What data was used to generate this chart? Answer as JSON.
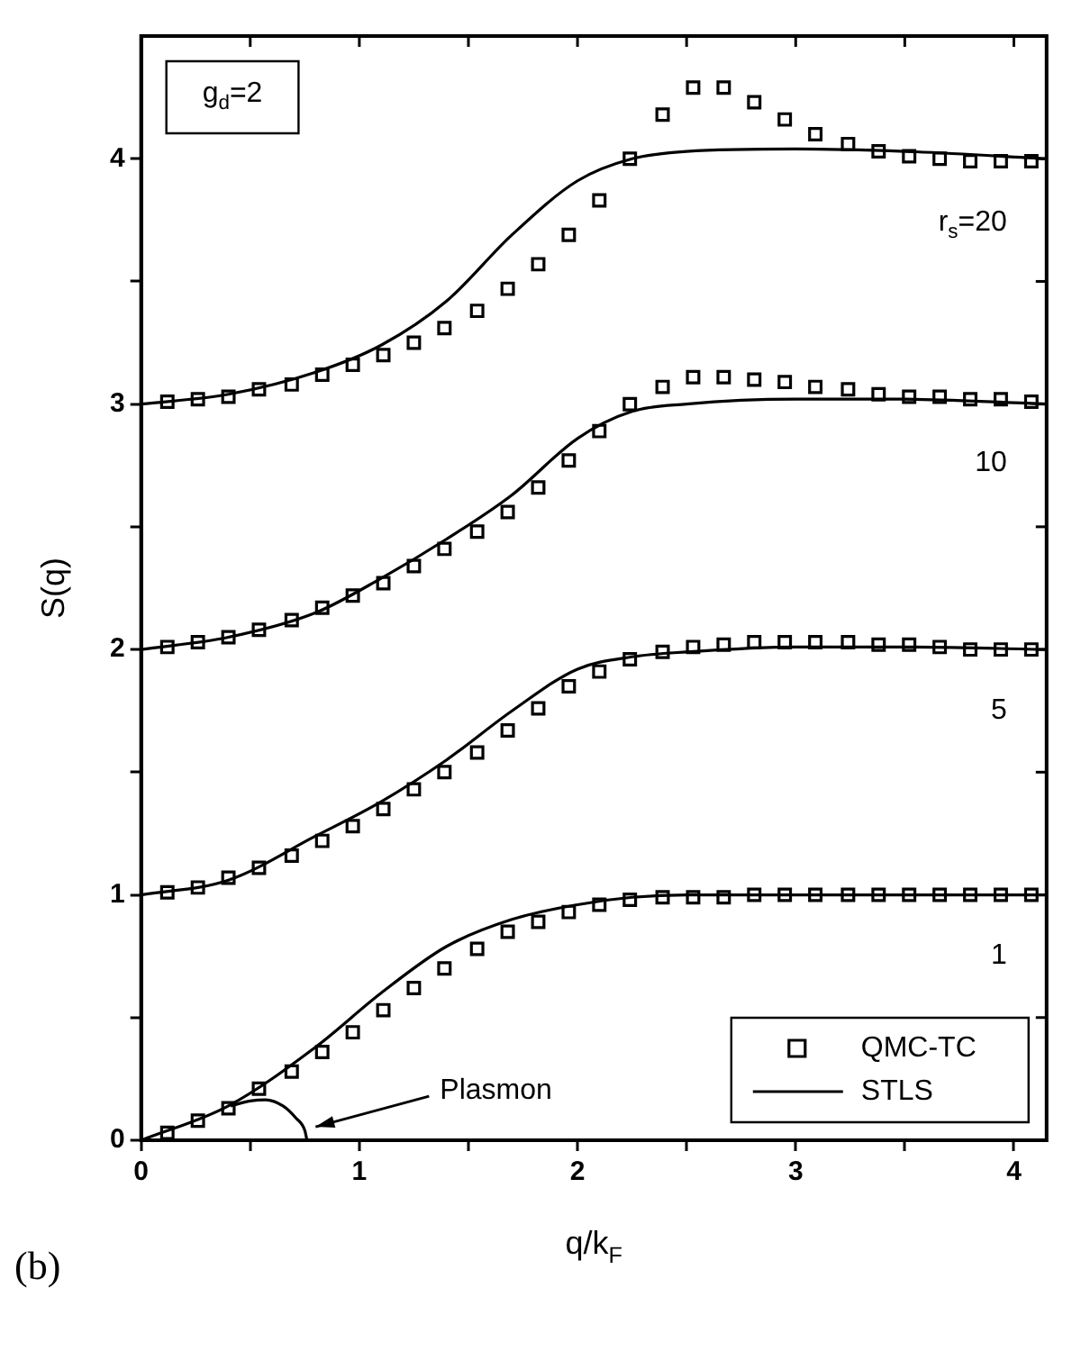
{
  "chart_data": {
    "type": "scatter",
    "xlabel": "q/k$_{F}$",
    "ylabel": "S(q)",
    "x": [
      0.12,
      0.26,
      0.4,
      0.54,
      0.69,
      0.83,
      0.97,
      1.11,
      1.25,
      1.39,
      1.54,
      1.68,
      1.82,
      1.96,
      2.1,
      2.24,
      2.39,
      2.53,
      2.67,
      2.81,
      2.95,
      3.09,
      3.24,
      3.38,
      3.52,
      3.66,
      3.8,
      3.94,
      4.08
    ],
    "series": [
      {
        "name": "QMC-TC",
        "marker": "square",
        "color": "#000000",
        "values": [
          0.03,
          0.08,
          0.13,
          0.21,
          0.28,
          0.36,
          0.44,
          0.53,
          0.62,
          0.7,
          0.78,
          0.85,
          0.89,
          0.93,
          0.96,
          0.98,
          0.99,
          0.99,
          0.99,
          1.0,
          1.0,
          1.0,
          1.0,
          1.0,
          1.0,
          1.0,
          1.0,
          1.0,
          1.0
        ]
      },
      {
        "marker": "square",
        "color": "#000000",
        "values": [
          1.01,
          1.03,
          1.07,
          1.11,
          1.16,
          1.22,
          1.28,
          1.35,
          1.43,
          1.5,
          1.58,
          1.67,
          1.76,
          1.85,
          1.91,
          1.96,
          1.99,
          2.01,
          2.02,
          2.03,
          2.03,
          2.03,
          2.03,
          2.02,
          2.02,
          2.01,
          2.0,
          2.0,
          2.0
        ]
      },
      {
        "marker": "square",
        "color": "#000000",
        "values": [
          2.01,
          2.03,
          2.05,
          2.08,
          2.12,
          2.17,
          2.22,
          2.27,
          2.34,
          2.41,
          2.48,
          2.56,
          2.66,
          2.77,
          2.89,
          3.0,
          3.07,
          3.11,
          3.11,
          3.1,
          3.09,
          3.07,
          3.06,
          3.04,
          3.03,
          3.03,
          3.02,
          3.02,
          3.01
        ]
      },
      {
        "marker": "square",
        "color": "#000000",
        "values": [
          3.01,
          3.02,
          3.03,
          3.06,
          3.08,
          3.12,
          3.16,
          3.2,
          3.25,
          3.31,
          3.38,
          3.47,
          3.57,
          3.69,
          3.83,
          4.0,
          4.18,
          4.29,
          4.29,
          4.23,
          4.16,
          4.1,
          4.06,
          4.03,
          4.01,
          4.0,
          3.99,
          3.99,
          3.99
        ]
      },
      {
        "name": "STLS",
        "type": "line",
        "line_style": "solid",
        "color": "#000000",
        "x": [
          0,
          0.4,
          0.8,
          1.1,
          1.4,
          1.7,
          2.0,
          2.25,
          2.5,
          3.0,
          3.5,
          4.15
        ],
        "values": [
          0,
          0.14,
          0.38,
          0.6,
          0.79,
          0.9,
          0.96,
          0.99,
          1.0,
          1.0,
          1.0,
          1.0
        ]
      },
      {
        "type": "line",
        "line_style": "solid",
        "color": "#000000",
        "x": [
          0,
          0.4,
          0.8,
          1.1,
          1.4,
          1.7,
          2.0,
          2.25,
          2.5,
          3.0,
          3.5,
          4.15
        ],
        "values": [
          1.0,
          1.06,
          1.24,
          1.38,
          1.55,
          1.75,
          1.92,
          1.97,
          1.99,
          2.01,
          2.01,
          2.0
        ]
      },
      {
        "type": "line",
        "line_style": "solid",
        "color": "#000000",
        "x": [
          0,
          0.4,
          0.8,
          1.1,
          1.4,
          1.7,
          2.0,
          2.25,
          2.5,
          3.0,
          3.5,
          4.15
        ],
        "values": [
          2.0,
          2.05,
          2.15,
          2.29,
          2.45,
          2.63,
          2.86,
          2.97,
          3.0,
          3.02,
          3.02,
          3.0
        ]
      },
      {
        "type": "line",
        "line_style": "solid",
        "color": "#000000",
        "x": [
          0,
          0.4,
          0.8,
          1.1,
          1.4,
          1.7,
          2.0,
          2.25,
          2.5,
          3.0,
          3.5,
          4.15
        ],
        "values": [
          3.0,
          3.04,
          3.13,
          3.24,
          3.42,
          3.69,
          3.91,
          4.0,
          4.03,
          4.04,
          4.03,
          4.0
        ]
      },
      {
        "type": "line",
        "line_style": "solid",
        "color": "#000000",
        "x": [
          0.41,
          0.5,
          0.57,
          0.65,
          0.71,
          0.75,
          0.76
        ],
        "values": [
          0.14,
          0.16,
          0.165,
          0.14,
          0.09,
          0.04,
          0
        ]
      }
    ],
    "annotations": [
      "g$_{d}$=2",
      "r$_{s}$=20",
      "10",
      "5",
      "1",
      "Plasmon",
      "(b)"
    ],
    "xlim": [
      0,
      4.15
    ],
    "ylim": [
      0,
      4.5
    ],
    "xticks": [
      0,
      {
        "value": 0.5,
        "label": null
      },
      1,
      {
        "value": 1.5,
        "label": null
      },
      2,
      {
        "value": 2.5,
        "label": null
      },
      3,
      {
        "value": 3.5,
        "label": null
      },
      4
    ],
    "yticks": [
      0,
      {
        "value": 0.5,
        "label": null
      },
      1,
      {
        "value": 1.5,
        "label": null
      },
      2,
      {
        "value": 2.5,
        "label": null
      },
      3,
      {
        "value": 3.5,
        "label": null
      },
      4
    ],
    "legend": "bottom right",
    "grid": false
  }
}
